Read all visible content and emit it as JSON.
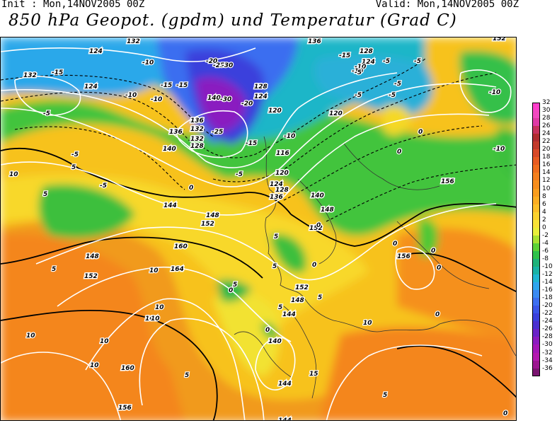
{
  "header": {
    "init": "Init : Mon,14NOV2005 00Z",
    "valid": "Valid: Mon,14NOV2005 00Z",
    "title": "850 hPa Geopot. (gpdm) und Temperatur (Grad C)"
  },
  "legend": {
    "labels": [
      "32",
      "30",
      "28",
      "26",
      "24",
      "22",
      "20",
      "18",
      "16",
      "14",
      "12",
      "10",
      "8",
      "6",
      "4",
      "2",
      "0",
      "-2",
      "-4",
      "-6",
      "-8",
      "-10",
      "-12",
      "-14",
      "-16",
      "-18",
      "-20",
      "-22",
      "-24",
      "-26",
      "-28",
      "-30",
      "-32",
      "-34",
      "-36"
    ],
    "colors": [
      "#ff3ecb",
      "#f248c0",
      "#e03aa6",
      "#c8325e",
      "#b02c30",
      "#c23a2c",
      "#d84a28",
      "#e85c22",
      "#f06e1e",
      "#f5801e",
      "#f88e1c",
      "#fa9e1e",
      "#fcae22",
      "#fdbf28",
      "#fcd22e",
      "#f8e338",
      "#e8ef3a",
      "#a8e230",
      "#5cd236",
      "#2ec24a",
      "#1eb27a",
      "#19b3a6",
      "#1fb6d2",
      "#2ea6ee",
      "#3a8af2",
      "#3c6ef0",
      "#3a55e8",
      "#3a40dc",
      "#4a30d0",
      "#6a22c8",
      "#8c1ac0",
      "#a516b8",
      "#b418b0",
      "#9c1690",
      "#7a1470"
    ]
  },
  "contours": {
    "geopotential_labels": [
      "132",
      "124",
      "132",
      "128",
      "124",
      "120",
      "136",
      "128",
      "124",
      "140",
      "140",
      "136",
      "132",
      "128",
      "120",
      "116",
      "124",
      "120",
      "128",
      "136",
      "140",
      "144",
      "148",
      "148",
      "152",
      "152",
      "156",
      "160",
      "164",
      "148",
      "152",
      "156",
      "156",
      "160",
      "152",
      "148",
      "144",
      "140",
      "144",
      "156",
      "164",
      "144",
      "136",
      "132",
      "124",
      "152"
    ],
    "temperature_labels": [
      "-20",
      "-25",
      "-30",
      "-30",
      "-25",
      "-20",
      "-15",
      "-15",
      "-15",
      "-10",
      "-10",
      "-15",
      "-10",
      "-5",
      "-5",
      "-10",
      "-10",
      "-5",
      "-5",
      "-5",
      "-15",
      "-10",
      "-5",
      "-5",
      "-5",
      "-10",
      "-10",
      "-5",
      "0",
      "0",
      "0",
      "0",
      "0",
      "0",
      "0",
      "0",
      "5",
      "5",
      "5",
      "5",
      "10",
      "10",
      "10",
      "10",
      "10",
      "10",
      "10",
      "10",
      "15",
      "5",
      "0",
      "-5",
      "0",
      "5",
      "5",
      "5",
      "5",
      "5",
      "0",
      "0"
    ]
  }
}
